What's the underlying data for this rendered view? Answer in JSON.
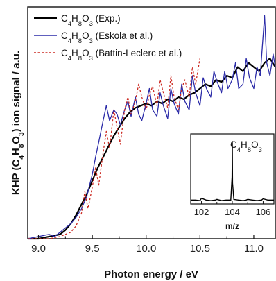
{
  "chart_data": {
    "type": "line",
    "xlabel": "Photon energy / eV",
    "ylabel_parts": [
      "KHP (C",
      "4",
      "H",
      "8",
      "O",
      "3",
      ") ion signal / a.u."
    ],
    "xlim": [
      8.9,
      11.2
    ],
    "ylim": [
      0,
      1.08
    ],
    "x_ticks": [
      "9.0",
      "9.5",
      "10.0",
      "10.5",
      "11.0"
    ],
    "x_tick_values": [
      9.0,
      9.5,
      10.0,
      10.5,
      11.0
    ],
    "y_ticks_labeled": false,
    "legend_position": "top-left",
    "series": [
      {
        "legend": [
          "C",
          "4",
          "H",
          "8",
          "O",
          "3",
          " (Exp.)"
        ],
        "color": "#000000",
        "style": "solid",
        "x": [
          8.9,
          9.0,
          9.1,
          9.2,
          9.25,
          9.3,
          9.35,
          9.4,
          9.45,
          9.5,
          9.55,
          9.6,
          9.65,
          9.7,
          9.75,
          9.8,
          9.85,
          9.9,
          9.95,
          10.0,
          10.05,
          10.1,
          10.15,
          10.2,
          10.25,
          10.3,
          10.35,
          10.4,
          10.45,
          10.5,
          10.55,
          10.6,
          10.65,
          10.7,
          10.75,
          10.8,
          10.85,
          10.9,
          10.95,
          11.0,
          11.05,
          11.1,
          11.15,
          11.2
        ],
        "y": [
          0.0,
          0.0,
          0.01,
          0.02,
          0.04,
          0.07,
          0.11,
          0.16,
          0.21,
          0.27,
          0.33,
          0.38,
          0.43,
          0.48,
          0.52,
          0.56,
          0.59,
          0.61,
          0.62,
          0.63,
          0.62,
          0.64,
          0.63,
          0.65,
          0.64,
          0.66,
          0.65,
          0.67,
          0.68,
          0.7,
          0.72,
          0.71,
          0.74,
          0.73,
          0.76,
          0.75,
          0.8,
          0.78,
          0.82,
          0.8,
          0.78,
          0.82,
          0.84,
          0.8
        ]
      },
      {
        "legend": [
          "C",
          "4",
          "H",
          "8",
          "O",
          "3",
          " (Eskola et al.)"
        ],
        "color": "#2b2ba8",
        "style": "solid",
        "x": [
          8.9,
          9.0,
          9.1,
          9.15,
          9.2,
          9.25,
          9.3,
          9.35,
          9.4,
          9.45,
          9.5,
          9.53,
          9.56,
          9.6,
          9.63,
          9.66,
          9.7,
          9.73,
          9.76,
          9.8,
          9.83,
          9.86,
          9.9,
          9.93,
          9.96,
          10.0,
          10.03,
          10.06,
          10.1,
          10.13,
          10.16,
          10.2,
          10.23,
          10.26,
          10.3,
          10.33,
          10.36,
          10.4,
          10.43,
          10.46,
          10.5,
          10.53,
          10.56,
          10.6,
          10.63,
          10.66,
          10.7,
          10.73,
          10.76,
          10.8,
          10.83,
          10.86,
          10.9,
          10.93,
          10.96,
          11.0,
          11.03,
          11.06,
          11.08,
          11.1,
          11.12,
          11.15,
          11.18,
          11.2
        ],
        "y": [
          0.0,
          0.01,
          0.02,
          0.01,
          0.03,
          0.05,
          0.07,
          0.1,
          0.14,
          0.2,
          0.3,
          0.38,
          0.45,
          0.55,
          0.62,
          0.55,
          0.6,
          0.58,
          0.53,
          0.6,
          0.64,
          0.57,
          0.66,
          0.58,
          0.55,
          0.63,
          0.7,
          0.6,
          0.57,
          0.68,
          0.62,
          0.56,
          0.7,
          0.63,
          0.58,
          0.72,
          0.64,
          0.6,
          0.76,
          0.68,
          0.62,
          0.75,
          0.7,
          0.66,
          0.78,
          0.73,
          0.68,
          0.78,
          0.7,
          0.74,
          0.82,
          0.7,
          0.72,
          0.84,
          0.75,
          0.7,
          0.8,
          0.76,
          0.9,
          1.04,
          0.82,
          0.76,
          0.86,
          0.8
        ]
      },
      {
        "legend": [
          "C",
          "4",
          "H",
          "8",
          "O",
          "3",
          " (Battin-Leclerc et al.)"
        ],
        "color": "#cc2a22",
        "style": "dashed",
        "x": [
          8.9,
          9.0,
          9.1,
          9.2,
          9.25,
          9.3,
          9.35,
          9.4,
          9.43,
          9.46,
          9.5,
          9.53,
          9.56,
          9.6,
          9.63,
          9.66,
          9.7,
          9.73,
          9.76,
          9.8,
          9.83,
          9.86,
          9.9,
          9.93,
          9.96,
          10.0,
          10.03,
          10.06,
          10.1,
          10.13,
          10.16,
          10.2,
          10.23,
          10.26,
          10.3,
          10.33,
          10.36,
          10.4,
          10.43,
          10.46,
          10.5
        ],
        "y": [
          0.0,
          0.0,
          0.0,
          0.01,
          0.02,
          0.03,
          0.06,
          0.12,
          0.22,
          0.14,
          0.24,
          0.33,
          0.25,
          0.4,
          0.5,
          0.42,
          0.6,
          0.52,
          0.44,
          0.6,
          0.66,
          0.58,
          0.64,
          0.72,
          0.66,
          0.6,
          0.67,
          0.71,
          0.62,
          0.74,
          0.68,
          0.61,
          0.76,
          0.66,
          0.6,
          0.7,
          0.74,
          0.66,
          0.8,
          0.72,
          0.84
        ]
      }
    ],
    "inset": {
      "title_parts": [
        "C",
        "4",
        "H",
        "8",
        "O",
        "3"
      ],
      "xlabel": "m/z",
      "xlim": [
        101.3,
        106.7
      ],
      "x_ticks": [
        "102",
        "104",
        "106"
      ],
      "x_tick_values": [
        102,
        104,
        106
      ],
      "x": [
        101.3,
        101.6,
        101.9,
        102.0,
        102.3,
        102.6,
        102.9,
        103.0,
        103.3,
        103.6,
        103.9,
        103.98,
        104.0,
        104.02,
        104.1,
        104.4,
        104.7,
        104.9,
        105.0,
        105.3,
        105.6,
        105.9,
        106.0,
        106.3,
        106.7
      ],
      "y": [
        0.02,
        0.02,
        0.01,
        0.05,
        0.02,
        0.01,
        0.02,
        0.03,
        0.01,
        0.02,
        0.02,
        0.4,
        1.0,
        0.3,
        0.03,
        0.02,
        0.01,
        0.02,
        0.03,
        0.02,
        0.01,
        0.02,
        0.04,
        0.02,
        0.02
      ],
      "ylim": [
        0,
        1.05
      ]
    }
  }
}
